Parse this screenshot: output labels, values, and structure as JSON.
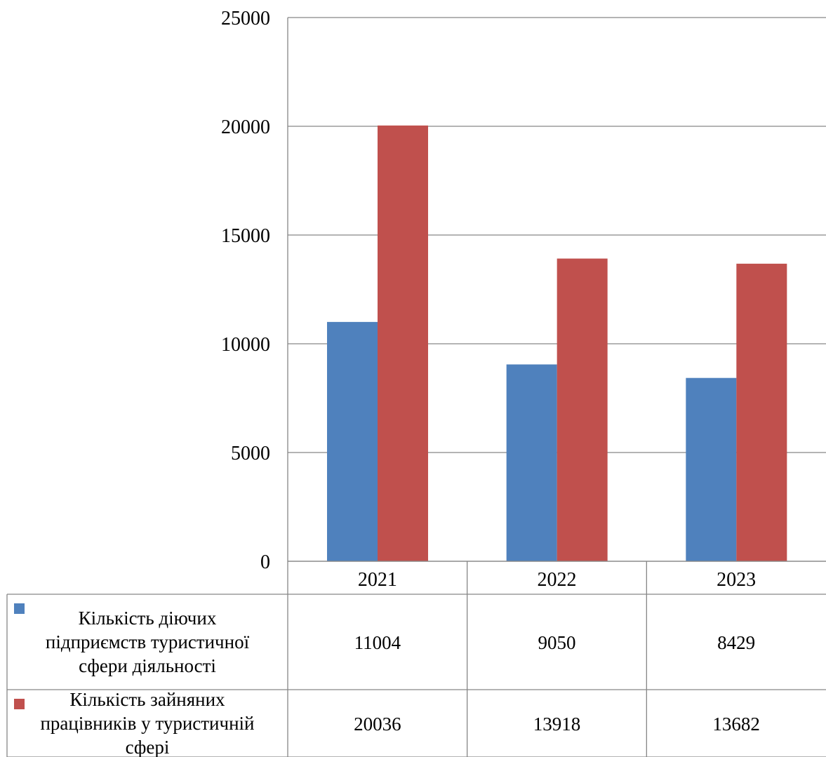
{
  "chart_data": {
    "type": "bar",
    "categories": [
      "2021",
      "2022",
      "2023"
    ],
    "series": [
      {
        "name": "Кількість діючих підприємств туристичної сфери діяльності",
        "name_lines": [
          "Кількість діючих",
          "підприємств туристичної",
          "сфери діяльності"
        ],
        "color": "#4F81BD",
        "values": [
          11004,
          9050,
          8429
        ],
        "labels": [
          "11004",
          "9050",
          "8429"
        ]
      },
      {
        "name": "Кількість зайняних працівників у туристичній сфері",
        "name_lines": [
          "Кількість зайняних",
          "працівників у туристичній",
          "сфері"
        ],
        "color": "#C0504D",
        "values": [
          20036,
          13918,
          13682
        ],
        "labels": [
          "20036",
          "13918",
          "13682"
        ]
      }
    ],
    "ylim": [
      0,
      25000
    ],
    "yticks": [
      "0",
      "5000",
      "10000",
      "15000",
      "20000",
      "25000"
    ],
    "grid": true,
    "legend": "data-table",
    "gridline_color": "#868686"
  }
}
